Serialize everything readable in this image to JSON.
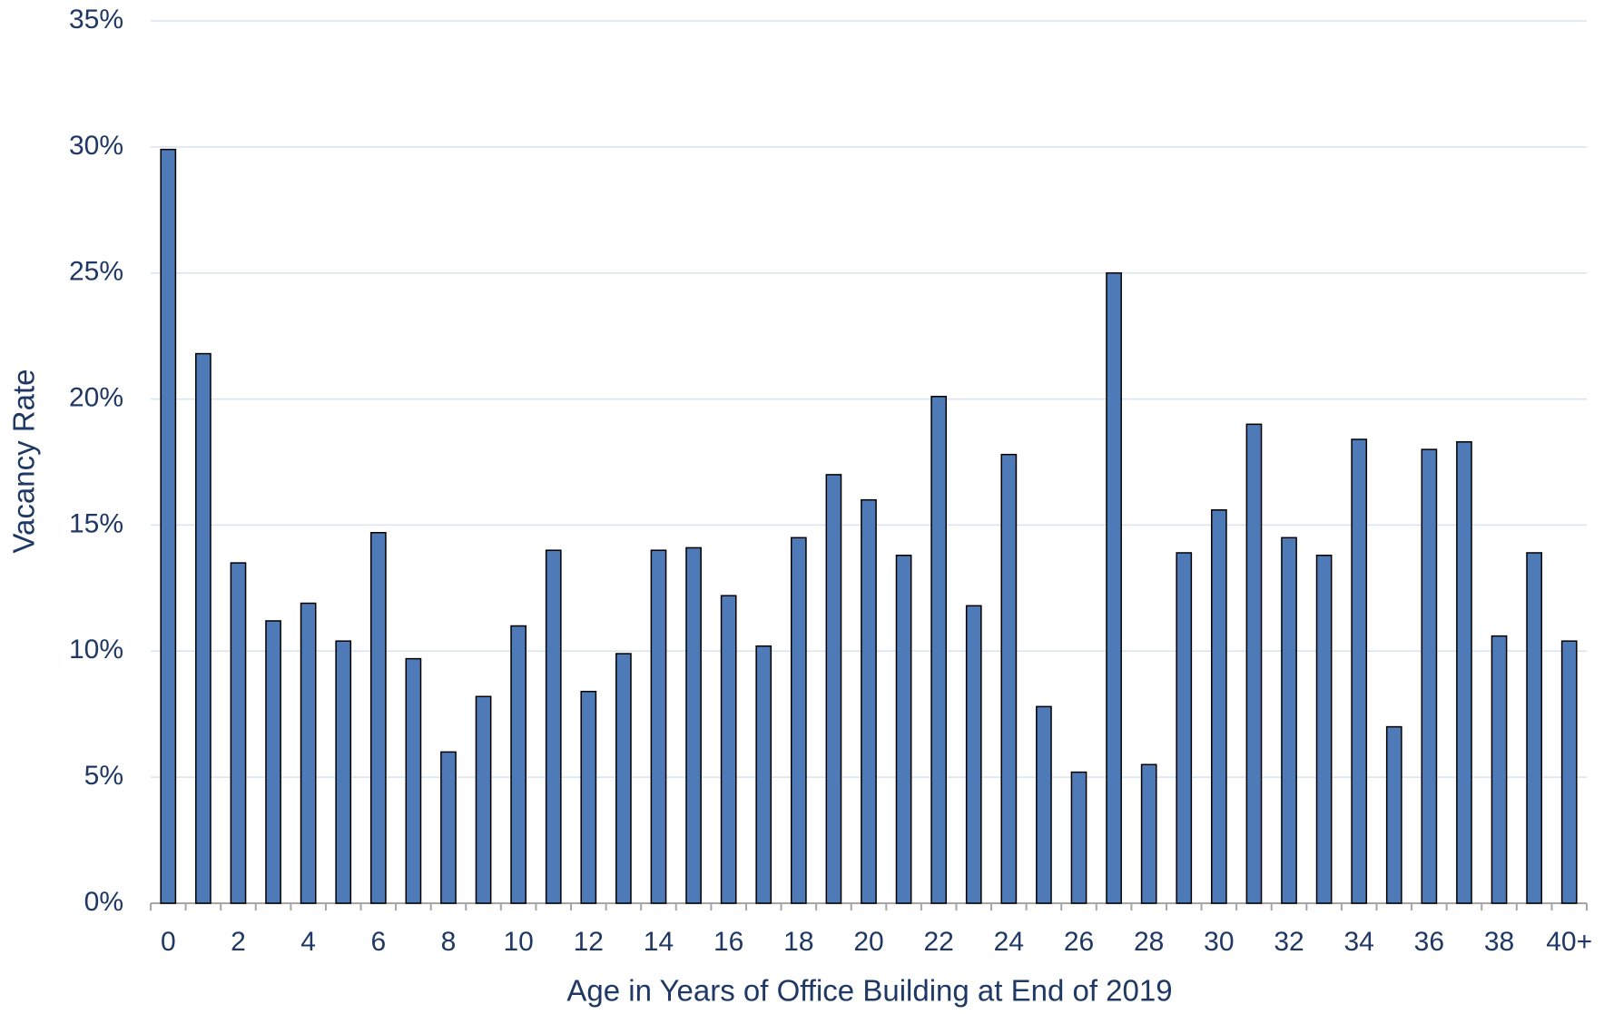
{
  "chart_data": {
    "type": "bar",
    "x_label": "Age in Years of Office Building at End of 2019",
    "y_label": "Vacancy Rate",
    "categories": [
      "0",
      null,
      "2",
      null,
      "4",
      null,
      "6",
      null,
      "8",
      null,
      "10",
      null,
      "12",
      null,
      "14",
      null,
      "16",
      null,
      "18",
      null,
      "20",
      null,
      "22",
      null,
      "24",
      null,
      "26",
      null,
      "28",
      null,
      "30",
      null,
      "32",
      null,
      "34",
      null,
      "36",
      null,
      "38",
      null,
      "40+"
    ],
    "values": [
      29.9,
      21.8,
      13.5,
      11.2,
      11.9,
      10.4,
      14.7,
      9.7,
      6.0,
      8.2,
      11.0,
      14.0,
      8.4,
      9.9,
      14.0,
      14.1,
      12.2,
      10.2,
      14.5,
      17.0,
      16.0,
      13.8,
      20.1,
      11.8,
      17.8,
      7.8,
      5.2,
      25.0,
      5.5,
      13.9,
      15.6,
      19.0,
      14.5,
      13.8,
      18.4,
      7.0,
      18.0,
      18.3,
      10.6,
      13.9,
      10.4
    ],
    "color": "#4f7ab8",
    "ylim": [
      0,
      35
    ],
    "yticks": [
      {
        "value": 0,
        "label": "0%"
      },
      {
        "value": 5,
        "label": "5%"
      },
      {
        "value": 10,
        "label": "10%"
      },
      {
        "value": 15,
        "label": "15%"
      },
      {
        "value": 20,
        "label": "20%"
      },
      {
        "value": 25,
        "label": "25%"
      },
      {
        "value": 30,
        "label": "30%"
      },
      {
        "value": 35,
        "label": "35%"
      }
    ],
    "grid": true
  }
}
